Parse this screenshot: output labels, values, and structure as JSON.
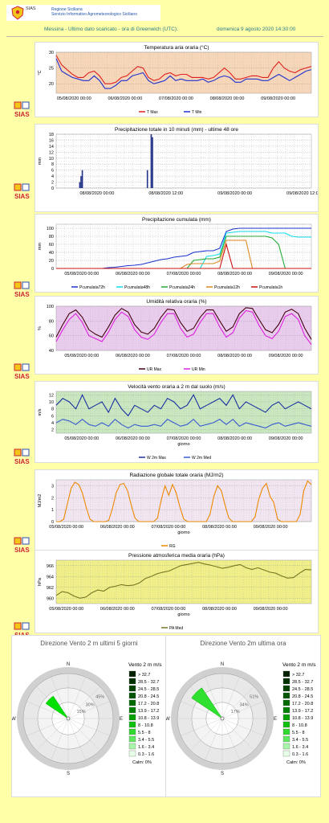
{
  "header": {
    "region": "Regione Siciliana",
    "service": "Servizio Informativo Agrometeorologico Siciliano",
    "brand_left": "SIAS",
    "logo_text": "SIAS"
  },
  "info": {
    "station": "Messina - Ultimo dato scaricato - ora di Greenwich (UTC):",
    "datetime": "domenica 9 agosto 2020 14:30:00"
  },
  "colors": {
    "background": "#ffffa8",
    "accent": "#2a7a8a"
  },
  "charts": [
    {
      "id": "temp",
      "type": "line",
      "title": "Temperatura aria oraria (°C)",
      "ylabel": "°C",
      "xlabel": "",
      "ylim": [
        17,
        30
      ],
      "yticks": [
        20,
        25,
        30
      ],
      "bg": "#f7d7b7",
      "grid": true,
      "xticks": [
        "05/08/2020 00:00",
        "06/08/2020 00:00",
        "07/08/2020 00:00",
        "08/08/2020 00:00",
        "09/08/2020 00:00"
      ],
      "tick_offset": 0.07,
      "tick_spacing": 0.2,
      "series": [
        {
          "name": "T Max",
          "color": "#e02020",
          "values": [
            29,
            26,
            24.5,
            23,
            22,
            22,
            23.5,
            24,
            22.5,
            20,
            20,
            20.5,
            22,
            22.5,
            24,
            25.5,
            25,
            22,
            21,
            21.5,
            23,
            23.5,
            22.5,
            23,
            23,
            22,
            22,
            22,
            21.5,
            22,
            23.5,
            25,
            23.5,
            21.5,
            21.5,
            22,
            22.5,
            22.5,
            22,
            22,
            25,
            27,
            25,
            24,
            23.5,
            24.5,
            25,
            25.5
          ]
        },
        {
          "name": "T Min",
          "color": "#2030d0",
          "values": [
            28,
            24,
            23,
            22,
            21.5,
            21,
            21,
            22.5,
            21,
            18.5,
            18.5,
            19.5,
            21,
            21,
            22.5,
            23,
            23.5,
            21,
            20,
            20.5,
            21,
            22.5,
            21,
            21.5,
            21,
            21,
            21,
            21.5,
            20.5,
            21,
            22,
            22.5,
            22,
            20.5,
            20.5,
            21.5,
            21.5,
            21.5,
            21,
            21,
            22,
            23,
            22,
            21,
            22,
            23,
            24,
            24.5
          ]
        }
      ]
    },
    {
      "id": "rain10",
      "type": "bar",
      "title": "Precipitazione totale in 10 minuti (mm) - ultime 48 ore",
      "ylabel": "mm",
      "xlabel": "",
      "ylim": [
        0,
        18
      ],
      "yticks": [
        0,
        2,
        4,
        6,
        8,
        10,
        12,
        14,
        16,
        18
      ],
      "bg": "#ffffff",
      "grid": true,
      "xticks": [
        "08/08/2020 00:00",
        "08/08/2020 12:00",
        "09/08/2020 00:00",
        "09/08/2020 12:00"
      ],
      "tick_offset": 0.16,
      "tick_spacing": 0.27,
      "bar_positions": [
        0.09,
        0.095,
        0.1,
        0.355,
        0.37,
        0.375
      ],
      "values": [
        2,
        4,
        6,
        6,
        18,
        17
      ],
      "bar_color": "#223388"
    },
    {
      "id": "cumul",
      "type": "line",
      "title": "Precipitazione cumulata (mm)",
      "ylabel": "mm",
      "xlabel": "",
      "ylim": [
        0,
        110
      ],
      "yticks": [
        0,
        20,
        40,
        60,
        80,
        100
      ],
      "bg": "#ffffff",
      "grid": true,
      "xticks": [
        "05/08/2020 00:00",
        "06/08/2020 00:00",
        "07/08/2020 00:00",
        "08/08/2020 00:00",
        "09/08/2020 00:00"
      ],
      "tick_offset": 0.1,
      "tick_spacing": 0.2,
      "series": [
        {
          "name": "Pcumulata72h",
          "color": "#1a33cc",
          "values": [
            0,
            0,
            0,
            0,
            0,
            0,
            0,
            0,
            2,
            3,
            5,
            7,
            8,
            10,
            14,
            18,
            22,
            24,
            28,
            30,
            32,
            40,
            42,
            44,
            44,
            50,
            92,
            98,
            100,
            100,
            100,
            100,
            100,
            100,
            100,
            100,
            100,
            100,
            100,
            100
          ]
        },
        {
          "name": "Pcumulata48h",
          "color": "#11ddee",
          "values": [
            0,
            0,
            0,
            0,
            0,
            0,
            0,
            0,
            0,
            0,
            0,
            0,
            0,
            0,
            0,
            0,
            0,
            0,
            0,
            0,
            0,
            0,
            0,
            30,
            32,
            36,
            88,
            90,
            92,
            92,
            92,
            92,
            92,
            88,
            88,
            88,
            80,
            78,
            78,
            78
          ]
        },
        {
          "name": "Pcumulata24h",
          "color": "#22aa33",
          "values": [
            0,
            0,
            0,
            0,
            0,
            0,
            0,
            0,
            0,
            0,
            0,
            0,
            0,
            0,
            0,
            0,
            0,
            0,
            0,
            0,
            0,
            20,
            22,
            24,
            24,
            28,
            80,
            80,
            80,
            80,
            80,
            80,
            80,
            76,
            60,
            0,
            0,
            0,
            0,
            0
          ]
        },
        {
          "name": "Pcumulata12h",
          "color": "#dd8822",
          "values": [
            0,
            0,
            0,
            0,
            0,
            0,
            0,
            0,
            0,
            0,
            0,
            0,
            0,
            0,
            0,
            0,
            0,
            0,
            0,
            0,
            10,
            12,
            12,
            12,
            12,
            18,
            70,
            70,
            70,
            70,
            0,
            0,
            0,
            0,
            0,
            0,
            0,
            0,
            0,
            0
          ]
        },
        {
          "name": "Pcumulata1h",
          "color": "#cc1111",
          "values": [
            0,
            0,
            0,
            0,
            0,
            0,
            0,
            0,
            0,
            0,
            0,
            0,
            0,
            0,
            0,
            0,
            0,
            0,
            0,
            0,
            0,
            0,
            0,
            0,
            0,
            0,
            60,
            0,
            0,
            0,
            0,
            0,
            0,
            0,
            0,
            0,
            0,
            0,
            0,
            0
          ]
        }
      ]
    },
    {
      "id": "humid",
      "type": "line",
      "title": "Umidità relativa oraria (%)",
      "ylabel": "%",
      "xlabel": "",
      "ylim": [
        40,
        100
      ],
      "yticks": [
        40,
        60,
        80,
        100
      ],
      "bg": "#eaccee",
      "grid": true,
      "xticks": [
        "05/08/2020 00:00",
        "06/08/2020 00:00",
        "07/08/2020 00:00",
        "08/08/2020 00:00",
        "09/08/2020 00:00"
      ],
      "tick_offset": 0.1,
      "tick_spacing": 0.2,
      "series": [
        {
          "name": "UR Max",
          "color": "#440011",
          "values": [
            58,
            75,
            90,
            95,
            85,
            68,
            62,
            58,
            72,
            88,
            97,
            92,
            75,
            65,
            62,
            70,
            85,
            96,
            95,
            78,
            66,
            70,
            85,
            95,
            95,
            80,
            66,
            72,
            90,
            98,
            97,
            82,
            68,
            64,
            75,
            92,
            96,
            90,
            70,
            55
          ]
        },
        {
          "name": "UR Min",
          "color": "#dd22dd",
          "values": [
            52,
            68,
            82,
            90,
            78,
            60,
            56,
            52,
            65,
            82,
            92,
            86,
            68,
            58,
            55,
            62,
            78,
            90,
            90,
            70,
            58,
            62,
            78,
            90,
            90,
            72,
            58,
            64,
            84,
            94,
            92,
            74,
            60,
            56,
            66,
            86,
            90,
            82,
            60,
            48
          ]
        }
      ]
    },
    {
      "id": "wind",
      "type": "line",
      "title": "Velocità vento oraria a 2 m dal suolo (m/s)",
      "ylabel": "m/s",
      "xlabel": "giorno",
      "ylim": [
        1,
        13
      ],
      "yticks": [
        2,
        4,
        6,
        8,
        10,
        12
      ],
      "bg": "#c9e8c0",
      "grid": true,
      "xticks": [
        "05/08/2020 00:00",
        "06/08/2020 00:00",
        "07/08/2020 00:00",
        "08/08/2020 00:00",
        "09/08/2020 00:00"
      ],
      "tick_offset": 0.1,
      "tick_spacing": 0.2,
      "series": [
        {
          "name": "W 2m Max",
          "color": "#1a2fa0",
          "values": [
            9,
            11,
            10,
            8,
            12,
            8,
            9,
            10,
            7,
            11,
            8,
            6,
            9,
            8,
            7,
            9,
            8,
            11,
            10,
            8,
            9,
            12,
            8,
            9,
            10,
            11,
            9,
            12,
            8,
            10,
            9,
            8,
            7,
            9,
            10,
            8,
            9,
            10,
            9,
            8
          ]
        },
        {
          "name": "W 2m Med",
          "color": "#3a5ad0",
          "values": [
            4,
            5,
            4.5,
            3.5,
            5,
            3.5,
            3,
            4,
            3,
            5,
            3.5,
            2.5,
            3.5,
            3,
            3,
            3.5,
            3,
            5,
            4,
            3,
            3.5,
            5,
            3,
            3.5,
            4,
            5,
            3.5,
            5,
            3,
            4,
            3.5,
            3,
            2.5,
            3.5,
            4,
            3,
            3.5,
            4,
            3.5,
            3
          ]
        }
      ]
    },
    {
      "id": "rad",
      "type": "line",
      "title": "Radiazione globale totale oraria (MJ/m2)",
      "ylabel": "MJ/m2",
      "xlabel": "giorno",
      "ylim": [
        0,
        3.5
      ],
      "yticks": [
        0,
        1,
        2,
        3
      ],
      "bg": "#f2e6f2",
      "grid": true,
      "xticks": [
        "05/08/2020 00:00",
        "06/08/2020 00:00",
        "07/08/2020 00:00",
        "08/08/2020 00:00",
        "09/08/2020 00:00"
      ],
      "tick_offset": 0.04,
      "tick_spacing": 0.2,
      "series": [
        {
          "name": "RG",
          "color": "#ee8800",
          "values": [
            0,
            0,
            0.2,
            1.5,
            2.8,
            3.3,
            3.1,
            2.4,
            1.2,
            0.2,
            0,
            0,
            0,
            0,
            0.1,
            1.1,
            2.4,
            3.1,
            3.2,
            2.6,
            1.4,
            0.3,
            0,
            0,
            0,
            0,
            0,
            0.3,
            1.8,
            3.0,
            2.2,
            3.1,
            2.4,
            1.2,
            0.2,
            0,
            0,
            0,
            0,
            0,
            0,
            0.6,
            2.1,
            3.0,
            2.6,
            1.4,
            0.3,
            0,
            0,
            0,
            0,
            0,
            0,
            0.4,
            1.9,
            2.8,
            3.2,
            2.1,
            1.6,
            0.2,
            0,
            0,
            0,
            0,
            0,
            0.6,
            2.6,
            3.4,
            3.1
          ]
        }
      ]
    },
    {
      "id": "press",
      "type": "line",
      "title": "Pressione atmosferica media oraria (hPa)",
      "ylabel": "hPa",
      "xlabel": "giorno",
      "ylim": [
        959,
        967
      ],
      "yticks": [
        960,
        962,
        964,
        966
      ],
      "bg": "#f0ef88",
      "grid": true,
      "xticks": [
        "05/08/2020 00:00",
        "06/08/2020 00:00",
        "07/08/2020 00:00",
        "08/08/2020 00:00",
        "09/08/2020 00:00"
      ],
      "tick_offset": 0.04,
      "tick_spacing": 0.2,
      "series": [
        {
          "name": "PA Med",
          "color": "#777722",
          "values": [
            960.5,
            961.2,
            961,
            960.4,
            960,
            960.2,
            961,
            961.5,
            961.3,
            962,
            962.2,
            962.5,
            962.3,
            962.4,
            962.8,
            963.6,
            964,
            964.5,
            964.8,
            965,
            965.5,
            966,
            966.2,
            966.4,
            966.6,
            966.3,
            966.1,
            965.8,
            965.5,
            965.7,
            966,
            966.2,
            965.6,
            965.3,
            965.6,
            965.2,
            964.8,
            964.6,
            964.1,
            963.7,
            963.8,
            964.6,
            965.3,
            965.2
          ]
        }
      ]
    }
  ],
  "roses": [
    {
      "id": "rose5d",
      "title": "Direzione Vento 2 m ultimi 5 giorni",
      "legend_title": "Vento 2 m m/s",
      "rings": [
        "15%",
        "30%",
        "45%"
      ],
      "calm": "Calm: 0%",
      "directions": [
        "N",
        "E",
        "S",
        "W"
      ],
      "sector_center_deg": 315,
      "sector_width_deg": 22.5,
      "petals": [
        {
          "pct": 0.6,
          "color": "#00e000"
        }
      ]
    },
    {
      "id": "rose1h",
      "title": "Direzione Vento 2m ultima ora",
      "legend_title": "Vento 2 m m/s",
      "rings": [
        "17%",
        "34%",
        "51%"
      ],
      "calm": "Calm: 0%",
      "directions": [
        "N",
        "E",
        "S",
        "W"
      ],
      "sector_center_deg": 315,
      "sector_width_deg": 22.5,
      "petals": [
        {
          "pct": 0.82,
          "color": "#30e030"
        }
      ]
    }
  ],
  "wind_classes": [
    {
      "label": "> 32.7",
      "color": "#002200"
    },
    {
      "label": "28.5 - 32.7",
      "color": "#003300"
    },
    {
      "label": "24.5 - 28.5",
      "color": "#004400"
    },
    {
      "label": "20.8 - 24.5",
      "color": "#005500"
    },
    {
      "label": "17.2 - 20.8",
      "color": "#006a00"
    },
    {
      "label": "13.9 - 17.2",
      "color": "#008000"
    },
    {
      "label": "10.8 - 13.9",
      "color": "#00a000"
    },
    {
      "label": "8 - 10.8",
      "color": "#10c010"
    },
    {
      "label": "5.5 - 8",
      "color": "#30d830"
    },
    {
      "label": "3.4 - 5.5",
      "color": "#60e860"
    },
    {
      "label": "1.6 - 3.4",
      "color": "#a8f4a8"
    },
    {
      "label": "0.3 - 1.6",
      "color": "#e8ffe8"
    }
  ]
}
